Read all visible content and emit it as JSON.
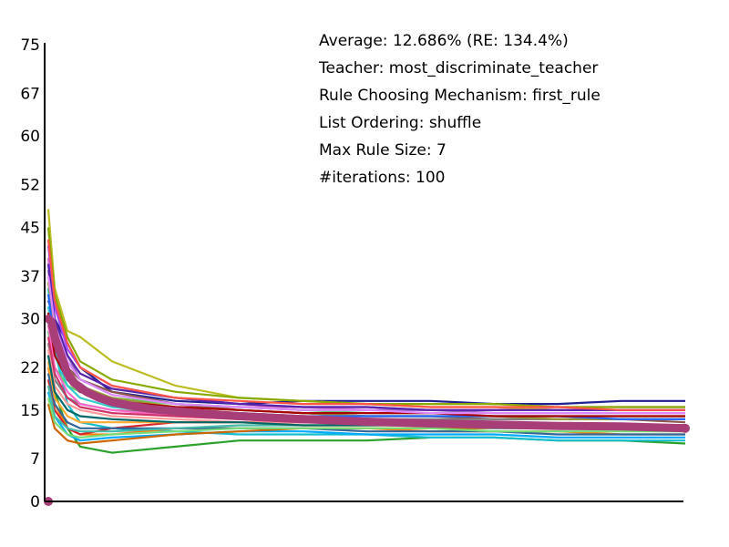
{
  "chart_data": {
    "type": "line",
    "title": "",
    "xlabel": "",
    "ylabel": "",
    "ylim": [
      0,
      75
    ],
    "xlim": [
      0,
      100
    ],
    "grid": false,
    "legend": "none",
    "y_ticks": [
      0,
      7,
      15,
      22,
      30,
      37,
      45,
      52,
      60,
      67,
      75
    ],
    "annotations": [
      "Average: 12.686% (RE: 134.4%)",
      "Teacher: most_discriminate_teacher",
      "Rule Choosing Mechanism: first_rule",
      "List Ordering: shuffle",
      "Max Rule Size: 7",
      "#iterations: 100"
    ],
    "colors": [
      "#1f1f8f",
      "#e377c2",
      "#2ca02c",
      "#17becf",
      "#bcbd22",
      "#ff7f0e",
      "#9467bd",
      "#8c564b",
      "#d62728",
      "#7f7f7f",
      "#00aaff",
      "#66cc66",
      "#ff9999",
      "#aa44ff",
      "#cc6600",
      "#33cccc",
      "#999933",
      "#ff66cc",
      "#336699",
      "#88aa00",
      "#cc3366",
      "#44bbaa",
      "#5522aa",
      "#ffaa33",
      "#2266ff",
      "#aa0000",
      "#77dd77",
      "#dd88ff",
      "#006666",
      "#ff5544"
    ],
    "average_series": {
      "name": "Average",
      "color": "#a83e78",
      "x": [
        0,
        0.5,
        1,
        2,
        3,
        4,
        6,
        8,
        10,
        13,
        16,
        20,
        25,
        30,
        40,
        50,
        60,
        70,
        80,
        90,
        100
      ],
      "values": [
        30.0,
        29.5,
        27.0,
        24.0,
        21.0,
        19.5,
        18.0,
        17.0,
        16.3,
        15.7,
        15.2,
        14.8,
        14.4,
        14.0,
        13.5,
        13.1,
        12.8,
        12.6,
        12.4,
        12.3,
        12.0
      ]
    },
    "series": [
      {
        "x": [
          0,
          1,
          3,
          5,
          10,
          20,
          30,
          40,
          50,
          60,
          70,
          80,
          90,
          100
        ],
        "values": [
          33,
          30,
          26,
          22,
          18,
          16.5,
          16,
          16.5,
          16.5,
          16.5,
          16,
          16,
          16.5,
          16.5
        ]
      },
      {
        "x": [
          0,
          1,
          3,
          5,
          10,
          20,
          30,
          40,
          50,
          60,
          70,
          80,
          90,
          100
        ],
        "values": [
          40,
          28,
          20,
          18,
          16,
          15.5,
          15.5,
          15.5,
          15,
          15,
          15,
          15.5,
          15.5,
          15.5
        ]
      },
      {
        "x": [
          0,
          1,
          3,
          5,
          10,
          20,
          30,
          40,
          50,
          60,
          70,
          80,
          90,
          100
        ],
        "values": [
          24,
          18,
          12,
          9,
          8,
          9,
          10,
          10,
          10,
          10.5,
          10.5,
          10,
          10,
          9.5
        ]
      },
      {
        "x": [
          0,
          1,
          3,
          5,
          10,
          20,
          30,
          40,
          50,
          60,
          70,
          80,
          90,
          100
        ],
        "values": [
          35,
          25,
          16,
          13,
          12,
          11.5,
          11,
          11,
          11,
          10.5,
          10.5,
          10,
          10,
          10
        ]
      },
      {
        "x": [
          0,
          1,
          3,
          5,
          10,
          20,
          30,
          40,
          50,
          60,
          70,
          80,
          90,
          100
        ],
        "values": [
          48,
          35,
          28,
          27,
          23,
          19,
          17,
          16.5,
          16,
          15.5,
          15.5,
          15,
          15,
          15
        ]
      },
      {
        "x": [
          0,
          1,
          3,
          5,
          10,
          20,
          30,
          40,
          50,
          60,
          70,
          80,
          90,
          100
        ],
        "values": [
          22,
          16,
          12,
          11,
          11,
          12,
          12,
          12,
          12,
          11.5,
          11.5,
          11.5,
          11,
          11
        ]
      },
      {
        "x": [
          0,
          1,
          3,
          5,
          10,
          20,
          30,
          40,
          50,
          60,
          70,
          80,
          90,
          100
        ],
        "values": [
          38,
          30,
          24,
          20,
          18,
          16,
          15.5,
          15,
          15,
          15,
          14.5,
          14.5,
          14.5,
          14.5
        ]
      },
      {
        "x": [
          0,
          1,
          3,
          5,
          10,
          20,
          30,
          40,
          50,
          60,
          70,
          80,
          90,
          100
        ],
        "values": [
          30,
          26,
          22,
          20,
          18,
          16,
          15,
          14.5,
          14,
          14,
          13.5,
          13.5,
          13.5,
          13
        ]
      },
      {
        "x": [
          0,
          1,
          3,
          5,
          10,
          20,
          30,
          40,
          50,
          60,
          70,
          80,
          90,
          100
        ],
        "values": [
          20,
          15,
          12,
          11,
          12,
          13,
          13,
          13,
          13,
          12.5,
          12.5,
          12.5,
          12.5,
          12.5
        ]
      },
      {
        "x": [
          0,
          1,
          3,
          5,
          10,
          20,
          30,
          40,
          50,
          60,
          70,
          80,
          90,
          100
        ],
        "values": [
          26,
          20,
          17,
          16,
          15,
          14.5,
          14,
          14,
          13.5,
          13.5,
          13.5,
          13.5,
          13.5,
          13.5
        ]
      },
      {
        "x": [
          0,
          1,
          3,
          5,
          10,
          20,
          30,
          40,
          50,
          60,
          70,
          80,
          90,
          100
        ],
        "values": [
          18,
          14,
          11,
          10,
          10.5,
          11,
          11.5,
          11.5,
          11,
          11,
          11,
          10.5,
          10.5,
          10.5
        ]
      },
      {
        "x": [
          0,
          1,
          3,
          5,
          10,
          20,
          30,
          40,
          50,
          60,
          70,
          80,
          90,
          100
        ],
        "values": [
          28,
          22,
          19,
          18,
          17,
          16,
          15.5,
          15,
          14.5,
          14.5,
          14,
          14,
          14,
          14
        ]
      },
      {
        "x": [
          0,
          1,
          3,
          5,
          10,
          20,
          30,
          40,
          50,
          60,
          70,
          80,
          90,
          100
        ],
        "values": [
          25,
          19,
          16,
          15,
          14,
          13.5,
          13,
          13,
          13,
          12.5,
          12.5,
          12.5,
          12.5,
          12.5
        ]
      },
      {
        "x": [
          0,
          1,
          3,
          5,
          10,
          20,
          30,
          40,
          50,
          60,
          70,
          80,
          90,
          100
        ],
        "values": [
          42,
          32,
          25,
          22,
          19,
          17,
          16,
          15.5,
          15.5,
          15,
          15,
          15,
          15,
          15
        ]
      },
      {
        "x": [
          0,
          1,
          3,
          5,
          10,
          20,
          30,
          40,
          50,
          60,
          70,
          80,
          90,
          100
        ],
        "values": [
          16,
          12,
          10,
          9.5,
          10,
          11,
          11.5,
          12,
          12,
          12,
          12,
          12,
          12,
          12
        ]
      },
      {
        "x": [
          0,
          1,
          3,
          5,
          10,
          20,
          30,
          40,
          50,
          60,
          70,
          80,
          90,
          100
        ],
        "values": [
          32,
          24,
          19,
          17,
          15.5,
          14.5,
          14,
          13.5,
          13,
          13,
          13,
          12.5,
          12.5,
          12.5
        ]
      },
      {
        "x": [
          0,
          1,
          3,
          5,
          10,
          20,
          30,
          40,
          50,
          60,
          70,
          80,
          90,
          100
        ],
        "values": [
          36,
          28,
          22,
          19,
          17,
          15.5,
          15,
          14.5,
          14,
          14,
          14,
          13.5,
          13.5,
          13.5
        ]
      },
      {
        "x": [
          0,
          1,
          3,
          5,
          10,
          20,
          30,
          40,
          50,
          60,
          70,
          80,
          90,
          100
        ],
        "values": [
          29,
          22,
          18,
          16,
          15,
          14,
          13.5,
          13,
          13,
          12.5,
          12.5,
          12,
          12,
          12
        ]
      },
      {
        "x": [
          0,
          1,
          3,
          5,
          10,
          20,
          30,
          40,
          50,
          60,
          70,
          80,
          90,
          100
        ],
        "values": [
          21,
          16,
          13,
          12,
          12,
          12,
          12,
          12,
          11.5,
          11.5,
          11.5,
          11,
          11,
          11
        ]
      },
      {
        "x": [
          0,
          1,
          3,
          5,
          10,
          20,
          30,
          40,
          50,
          60,
          70,
          80,
          90,
          100
        ],
        "values": [
          45,
          34,
          27,
          23,
          20,
          18,
          17,
          16.5,
          16,
          16,
          16,
          15.5,
          15.5,
          15.5
        ]
      },
      {
        "x": [
          0,
          1,
          3,
          5,
          10,
          20,
          30,
          40,
          50,
          60,
          70,
          80,
          90,
          100
        ],
        "values": [
          27,
          21,
          17,
          15.5,
          14.5,
          14,
          13.5,
          13,
          13,
          13,
          12.5,
          12.5,
          12.5,
          12.5
        ]
      },
      {
        "x": [
          0,
          1,
          3,
          5,
          10,
          20,
          30,
          40,
          50,
          60,
          70,
          80,
          90,
          100
        ],
        "values": [
          19,
          14,
          12,
          11.5,
          11.5,
          12,
          12.5,
          12.5,
          12.5,
          12.5,
          12,
          12,
          12,
          12
        ]
      },
      {
        "x": [
          0,
          1,
          3,
          5,
          10,
          20,
          30,
          40,
          50,
          60,
          70,
          80,
          90,
          100
        ],
        "values": [
          39,
          30,
          24,
          21,
          18.5,
          17,
          16,
          15.5,
          15.5,
          15,
          15,
          15,
          15,
          15
        ]
      },
      {
        "x": [
          0,
          1,
          3,
          5,
          10,
          20,
          30,
          40,
          50,
          60,
          70,
          80,
          90,
          100
        ],
        "values": [
          23,
          17,
          14,
          13,
          13,
          13,
          13,
          12.5,
          12.5,
          12.5,
          12.5,
          12,
          12,
          12
        ]
      },
      {
        "x": [
          0,
          1,
          3,
          5,
          10,
          20,
          30,
          40,
          50,
          60,
          70,
          80,
          90,
          100
        ],
        "values": [
          34,
          26,
          20,
          18,
          16,
          15,
          14.5,
          14,
          14,
          14,
          14,
          14,
          13.5,
          13.5
        ]
      },
      {
        "x": [
          0,
          1,
          3,
          5,
          10,
          20,
          30,
          40,
          50,
          60,
          70,
          80,
          90,
          100
        ],
        "values": [
          31,
          24,
          20,
          18,
          16.5,
          15.5,
          15,
          14.5,
          14.5,
          14.5,
          14,
          14,
          14,
          14
        ]
      },
      {
        "x": [
          0,
          1,
          3,
          5,
          10,
          20,
          30,
          40,
          50,
          60,
          70,
          80,
          90,
          100
        ],
        "values": [
          17,
          13,
          11,
          10.5,
          11,
          11.5,
          12,
          12,
          12,
          12,
          11.5,
          11.5,
          11.5,
          11.5
        ]
      },
      {
        "x": [
          0,
          1,
          3,
          5,
          10,
          20,
          30,
          40,
          50,
          60,
          70,
          80,
          90,
          100
        ],
        "values": [
          37,
          29,
          23,
          20,
          17.5,
          16,
          15.5,
          15,
          15,
          14.5,
          14.5,
          14.5,
          14.5,
          14.5
        ]
      },
      {
        "x": [
          0,
          1,
          3,
          5,
          10,
          20,
          30,
          40,
          50,
          60,
          70,
          80,
          90,
          100
        ],
        "values": [
          24,
          18,
          15,
          14,
          13.5,
          13,
          13,
          12.5,
          12.5,
          12.5,
          12.5,
          12.5,
          12,
          12
        ]
      },
      {
        "x": [
          0,
          1,
          3,
          5,
          10,
          20,
          30,
          40,
          50,
          60,
          70,
          80,
          90,
          100
        ],
        "values": [
          43,
          33,
          26,
          22,
          19,
          17,
          16.5,
          16,
          16,
          15.5,
          15.5,
          15.5,
          15,
          15
        ]
      }
    ]
  }
}
